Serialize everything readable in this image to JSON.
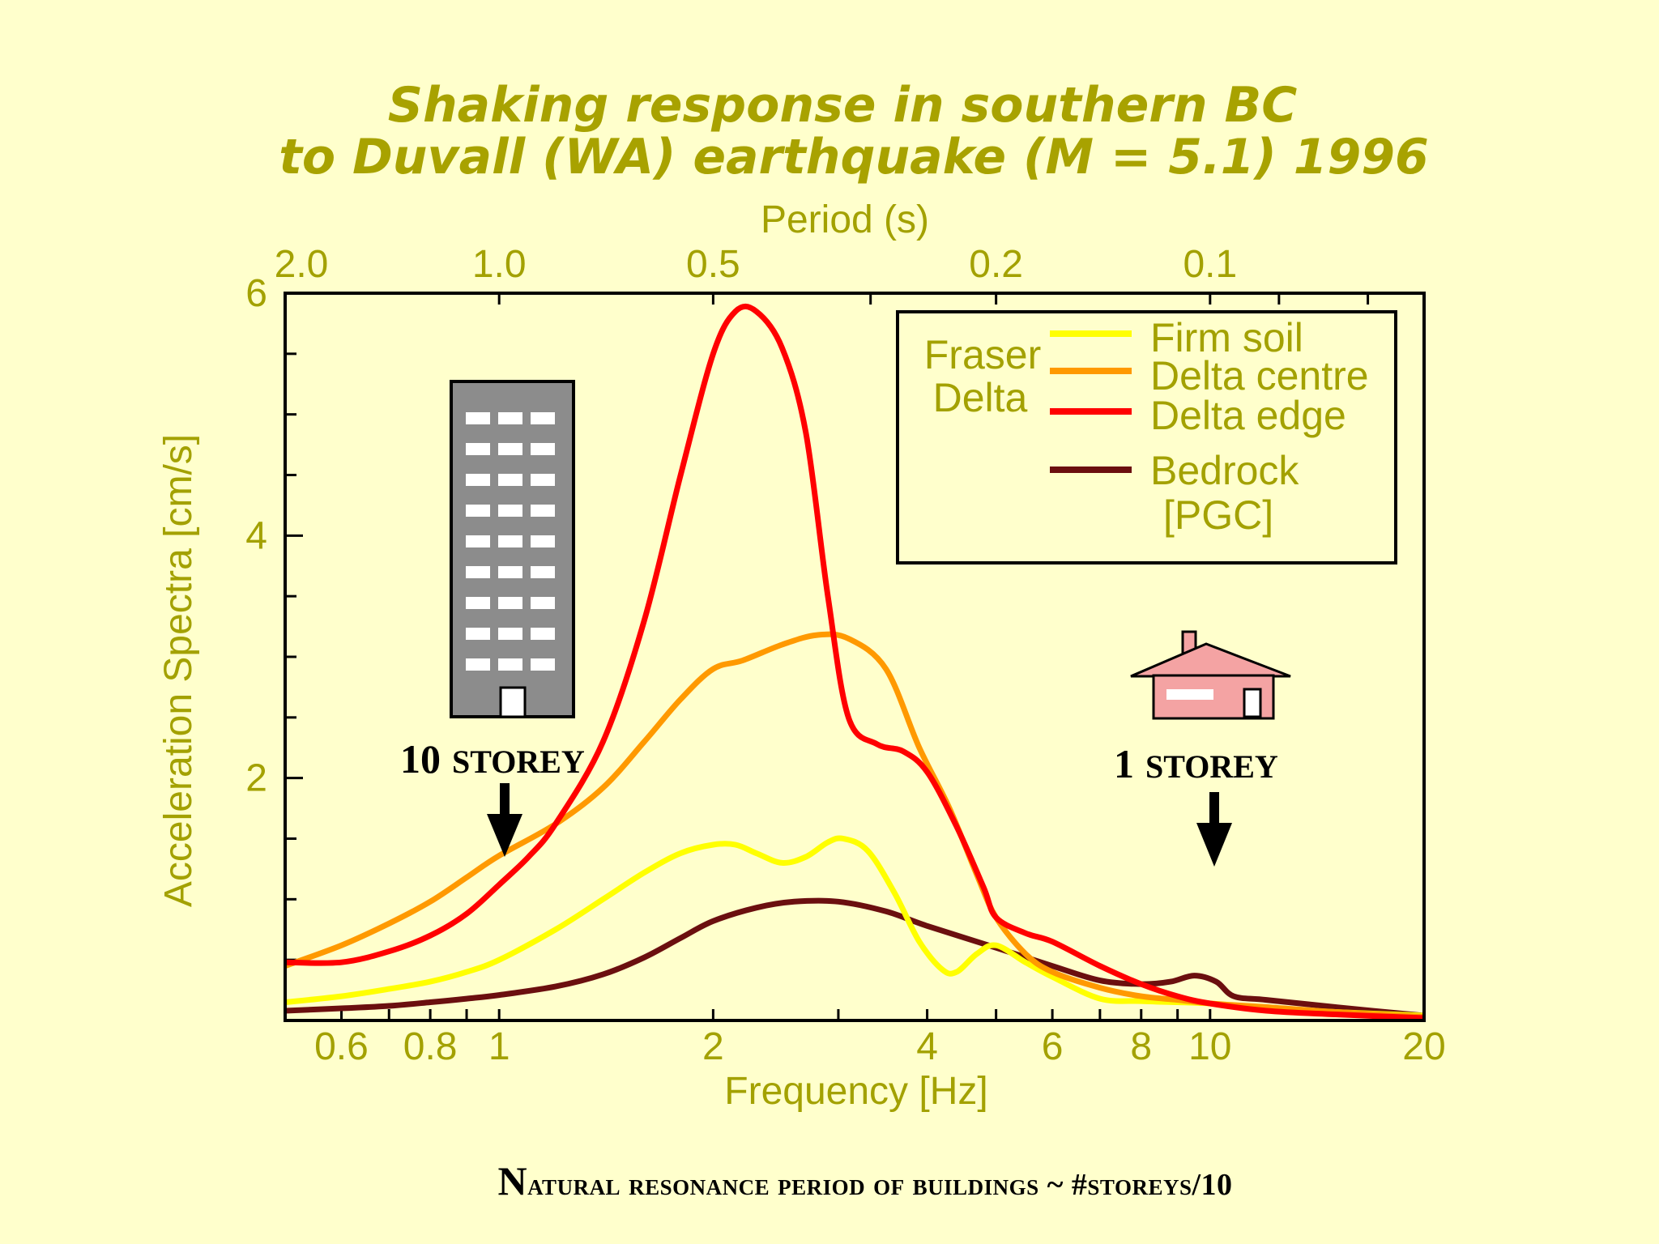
{
  "chart_data": {
    "type": "line",
    "title": "Shaking response in southern BC",
    "subtitle": "to Duvall (WA) earthquake (M = 5.1) 1996",
    "xlabel": "Frequency [Hz]",
    "ylabel": "Acceleration Spectra [cm/s]",
    "top_axis_label": "Period (s)",
    "x_scale": "log",
    "xlim": [
      0.5,
      20
    ],
    "ylim": [
      0,
      6
    ],
    "x_ticks": [
      {
        "value": 0.6,
        "label": "0.6"
      },
      {
        "value": 0.8,
        "label": "0.8"
      },
      {
        "value": 1,
        "label": "1"
      },
      {
        "value": 2,
        "label": "2"
      },
      {
        "value": 4,
        "label": "4"
      },
      {
        "value": 6,
        "label": "6"
      },
      {
        "value": 8,
        "label": "8"
      },
      {
        "value": 10,
        "label": "10"
      },
      {
        "value": 20,
        "label": "20"
      }
    ],
    "y_ticks": [
      {
        "value": 2,
        "label": "2"
      },
      {
        "value": 4,
        "label": "4"
      },
      {
        "value": 6,
        "label": "6"
      }
    ],
    "period_ticks": [
      {
        "value": 0.5,
        "label": "2.0"
      },
      {
        "value": 1,
        "label": "1.0"
      },
      {
        "value": 2,
        "label": "0.5"
      },
      {
        "value": 5,
        "label": "0.2"
      },
      {
        "value": 10,
        "label": "0.1"
      }
    ],
    "legend": {
      "position": "top-right",
      "group_label_line1": "Fraser",
      "group_label_line2": "Delta"
    },
    "series": [
      {
        "name": "Firm soil",
        "color": "#FFFF00",
        "points": [
          [
            0.5,
            0.15
          ],
          [
            0.6,
            0.2
          ],
          [
            0.7,
            0.26
          ],
          [
            0.8,
            0.32
          ],
          [
            0.9,
            0.4
          ],
          [
            1.0,
            0.5
          ],
          [
            1.2,
            0.75
          ],
          [
            1.4,
            1.0
          ],
          [
            1.6,
            1.22
          ],
          [
            1.8,
            1.38
          ],
          [
            2.0,
            1.45
          ],
          [
            2.15,
            1.45
          ],
          [
            2.3,
            1.38
          ],
          [
            2.5,
            1.3
          ],
          [
            2.7,
            1.35
          ],
          [
            2.9,
            1.47
          ],
          [
            3.05,
            1.5
          ],
          [
            3.3,
            1.4
          ],
          [
            3.6,
            1.05
          ],
          [
            3.9,
            0.65
          ],
          [
            4.2,
            0.42
          ],
          [
            4.4,
            0.4
          ],
          [
            4.7,
            0.55
          ],
          [
            5.0,
            0.62
          ],
          [
            5.5,
            0.48
          ],
          [
            6.0,
            0.36
          ],
          [
            7.0,
            0.18
          ],
          [
            8.0,
            0.16
          ],
          [
            9.0,
            0.15
          ],
          [
            10.0,
            0.14
          ],
          [
            12.0,
            0.1
          ],
          [
            15.0,
            0.07
          ],
          [
            20.0,
            0.04
          ]
        ]
      },
      {
        "name": "Delta centre",
        "color": "#FF9900",
        "points": [
          [
            0.5,
            0.45
          ],
          [
            0.6,
            0.62
          ],
          [
            0.7,
            0.8
          ],
          [
            0.8,
            0.98
          ],
          [
            0.9,
            1.18
          ],
          [
            1.0,
            1.36
          ],
          [
            1.2,
            1.62
          ],
          [
            1.4,
            1.92
          ],
          [
            1.6,
            2.3
          ],
          [
            1.8,
            2.65
          ],
          [
            2.0,
            2.9
          ],
          [
            2.2,
            2.97
          ],
          [
            2.5,
            3.1
          ],
          [
            2.8,
            3.18
          ],
          [
            3.1,
            3.15
          ],
          [
            3.5,
            2.9
          ],
          [
            3.9,
            2.25
          ],
          [
            4.3,
            1.75
          ],
          [
            4.7,
            1.2
          ],
          [
            5.0,
            0.85
          ],
          [
            5.5,
            0.55
          ],
          [
            6.0,
            0.4
          ],
          [
            7.0,
            0.27
          ],
          [
            8.0,
            0.2
          ],
          [
            9.0,
            0.17
          ],
          [
            10.0,
            0.14
          ],
          [
            12.0,
            0.11
          ],
          [
            15.0,
            0.07
          ],
          [
            20.0,
            0.03
          ]
        ]
      },
      {
        "name": "Delta edge",
        "color": "#FF0000",
        "points": [
          [
            0.5,
            0.48
          ],
          [
            0.6,
            0.48
          ],
          [
            0.7,
            0.57
          ],
          [
            0.8,
            0.7
          ],
          [
            0.9,
            0.88
          ],
          [
            1.0,
            1.12
          ],
          [
            1.1,
            1.35
          ],
          [
            1.2,
            1.62
          ],
          [
            1.4,
            2.3
          ],
          [
            1.6,
            3.3
          ],
          [
            1.8,
            4.5
          ],
          [
            2.0,
            5.5
          ],
          [
            2.15,
            5.85
          ],
          [
            2.3,
            5.85
          ],
          [
            2.5,
            5.55
          ],
          [
            2.7,
            4.85
          ],
          [
            2.9,
            3.5
          ],
          [
            3.1,
            2.5
          ],
          [
            3.4,
            2.28
          ],
          [
            3.7,
            2.22
          ],
          [
            4.0,
            2.05
          ],
          [
            4.4,
            1.6
          ],
          [
            4.8,
            1.1
          ],
          [
            5.0,
            0.85
          ],
          [
            5.5,
            0.72
          ],
          [
            6.0,
            0.65
          ],
          [
            7.0,
            0.45
          ],
          [
            8.0,
            0.3
          ],
          [
            9.0,
            0.2
          ],
          [
            10.0,
            0.14
          ],
          [
            12.0,
            0.08
          ],
          [
            15.0,
            0.05
          ],
          [
            20.0,
            0.02
          ]
        ]
      },
      {
        "name": "Bedrock\n[PGC]",
        "color": "#6B0F0F",
        "points": [
          [
            0.5,
            0.08
          ],
          [
            0.6,
            0.1
          ],
          [
            0.7,
            0.12
          ],
          [
            0.8,
            0.15
          ],
          [
            0.9,
            0.18
          ],
          [
            1.0,
            0.21
          ],
          [
            1.2,
            0.28
          ],
          [
            1.4,
            0.38
          ],
          [
            1.6,
            0.52
          ],
          [
            1.8,
            0.68
          ],
          [
            2.0,
            0.82
          ],
          [
            2.3,
            0.93
          ],
          [
            2.6,
            0.98
          ],
          [
            3.0,
            0.98
          ],
          [
            3.5,
            0.9
          ],
          [
            4.0,
            0.78
          ],
          [
            5.0,
            0.6
          ],
          [
            6.0,
            0.45
          ],
          [
            7.0,
            0.33
          ],
          [
            8.0,
            0.3
          ],
          [
            8.8,
            0.32
          ],
          [
            9.5,
            0.37
          ],
          [
            10.2,
            0.32
          ],
          [
            10.8,
            0.2
          ],
          [
            12.0,
            0.17
          ],
          [
            15.0,
            0.11
          ],
          [
            20.0,
            0.04
          ]
        ]
      }
    ]
  },
  "annotations": {
    "tall_building_label_number": "10",
    "tall_building_label_word": "STOREY",
    "house_label_number": "1",
    "house_label_word": "STOREY",
    "tall_building_marker_hz": 1.0,
    "house_marker_hz": 10.0,
    "footer_lead": "N",
    "footer_rest": "atural resonance period of buildings ~ #storeys/10"
  },
  "icons": {
    "tall_building": "office-building-icon",
    "house": "house-icon",
    "arrow": "down-arrow-icon"
  },
  "colors": {
    "background": "#FFFFCC",
    "label_olive": "#A3A100"
  }
}
